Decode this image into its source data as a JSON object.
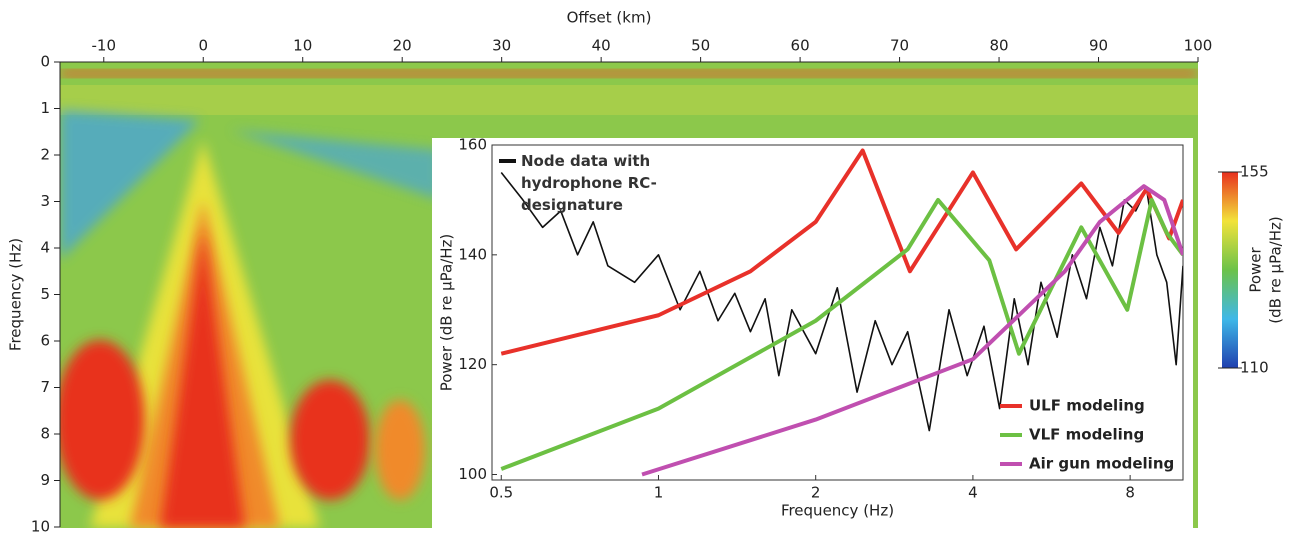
{
  "chart_data": [
    {
      "type": "spectrogram",
      "x_label": "Offset (km)",
      "y_label": "Frequency (Hz)",
      "xlim": [
        -14.4,
        100
      ],
      "xticks": [
        -10,
        0,
        10,
        20,
        30,
        40,
        50,
        60,
        70,
        80,
        90,
        100
      ],
      "ylim": [
        0,
        10
      ],
      "yticks": [
        0,
        1,
        2,
        3,
        4,
        5,
        6,
        7,
        8,
        9,
        10
      ],
      "colorbar": {
        "lim": [
          110,
          155
        ],
        "ticks": [
          110,
          155
        ],
        "label": [
          "Power",
          "(dB re µPa/Hz)"
        ],
        "colors": [
          "#1f3fae",
          "#3fb8e8",
          "#6cc24a",
          "#f2e33a",
          "#e8301e"
        ]
      }
    },
    {
      "type": "line",
      "xscale": "log",
      "x_label": "Frequency (Hz)",
      "y_label": "Power (dB re µPa/Hz)",
      "xlim": [
        0.48,
        10.1
      ],
      "xticks": [
        0.5,
        1,
        2,
        4,
        8
      ],
      "ylim": [
        99,
        160
      ],
      "yticks": [
        100,
        120,
        140,
        160
      ],
      "series": [
        {
          "name": "Node data with hydrophone RC-designature",
          "color": "#111111",
          "x": [
            0.5,
            0.55,
            0.6,
            0.65,
            0.7,
            0.75,
            0.8,
            0.9,
            1.0,
            1.1,
            1.2,
            1.3,
            1.4,
            1.5,
            1.6,
            1.7,
            1.8,
            2.0,
            2.2,
            2.4,
            2.6,
            2.8,
            3.0,
            3.3,
            3.6,
            3.9,
            4.2,
            4.5,
            4.8,
            5.1,
            5.4,
            5.8,
            6.2,
            6.6,
            7.0,
            7.4,
            7.8,
            8.2,
            8.6,
            9.0,
            9.4,
            9.8,
            10.1
          ],
          "values": [
            155,
            150,
            145,
            148,
            140,
            146,
            138,
            135,
            140,
            130,
            137,
            128,
            133,
            126,
            132,
            118,
            130,
            122,
            134,
            115,
            128,
            120,
            126,
            108,
            130,
            118,
            127,
            112,
            132,
            120,
            135,
            125,
            140,
            132,
            145,
            138,
            150,
            148,
            152,
            140,
            135,
            120,
            138
          ]
        },
        {
          "name": "ULF modeling",
          "color": "#e8312a",
          "x": [
            0.5,
            1,
            1.5,
            2,
            2.46,
            3.03,
            4,
            4.84,
            6.45,
            7.6,
            8.6,
            9.5,
            10.1
          ],
          "values": [
            122,
            129,
            137,
            146,
            159,
            137,
            155,
            141,
            153,
            144,
            152,
            143,
            150
          ]
        },
        {
          "name": "VLF modeling",
          "color": "#6cc043",
          "x": [
            0.5,
            1,
            2,
            3,
            3.43,
            4.3,
            4.9,
            6.45,
            7.9,
            8.8,
            9.4,
            10.1
          ],
          "values": [
            101,
            112,
            128,
            141,
            150,
            139,
            122,
            145,
            130,
            150,
            144,
            140
          ]
        },
        {
          "name": "Air gun modeling",
          "color": "#c04fb0",
          "x": [
            0.93,
            2,
            4,
            6,
            7,
            8.5,
            9.3,
            10.1
          ],
          "values": [
            100,
            110,
            121,
            137,
            146,
            152.5,
            150,
            140
          ]
        }
      ]
    }
  ]
}
